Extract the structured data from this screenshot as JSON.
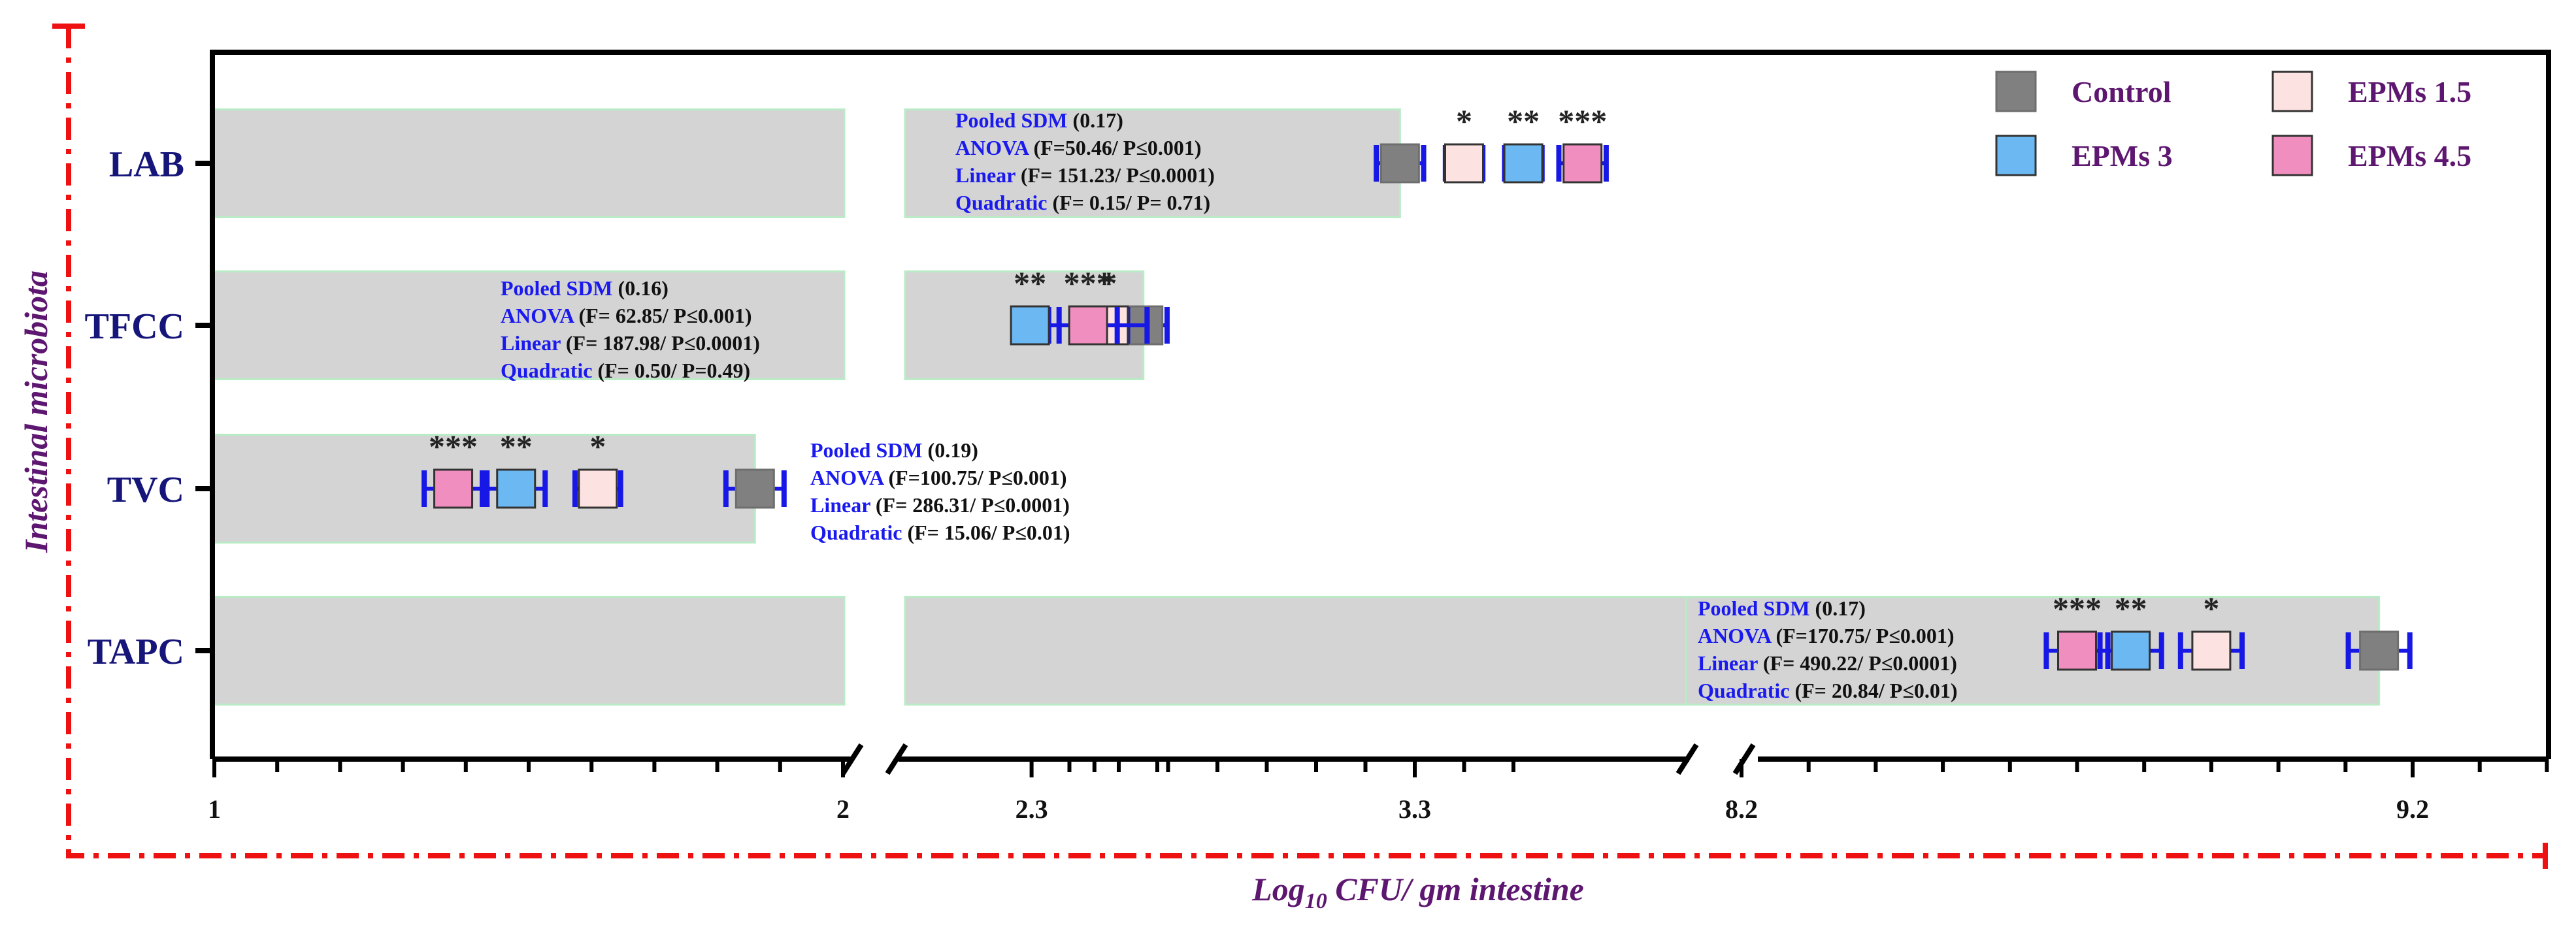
{
  "chart_data": {
    "type": "scatter",
    "orientation": "horizontal",
    "ylabel": "Intestinal microbiota",
    "xlabel_main": "Log",
    "xlabel_sub": "10",
    "xlabel_rest": " CFU/ gm intestine",
    "x_axis": {
      "broken": true,
      "segments": [
        [
          1,
          2
        ],
        [
          2.3,
          3.3,
          3.5
        ],
        [
          8.2,
          9.2,
          9.4
        ]
      ],
      "tick_labels": [
        "1",
        "2",
        "2.3",
        "3.3",
        "8.2",
        "9.2"
      ]
    },
    "categories": [
      "LAB",
      "TFCC",
      "TVC",
      "TAPC"
    ],
    "series": [
      {
        "name": "Control",
        "color": "#808080"
      },
      {
        "name": "EPMs 1.5",
        "color": "#fde2e2"
      },
      {
        "name": "EPMs 3",
        "color": "#6cb8f2"
      },
      {
        "name": "EPMs 4.5",
        "color": "#f08fbf"
      }
    ],
    "points": {
      "LAB": {
        "Control": 3.27,
        "EPMs 1.5": 3.4,
        "EPMs 3": 3.52,
        "EPMs 4.5": 3.64
      },
      "TFCC": {
        "Control": 2.75,
        "EPMs 1.5": 2.68,
        "EPMs 3": 2.52,
        "EPMs 4.5": 2.39
      },
      "TVC": {
        "Control": 1.86,
        "EPMs 1.5": 1.61,
        "EPMs 3": 1.48,
        "EPMs 4.5": 1.38
      },
      "TAPC": {
        "Control": 9.15,
        "EPMs 1.5": 8.9,
        "EPMs 3": 8.78,
        "EPMs 4.5": 8.7
      }
    },
    "error": {
      "LAB": {
        "Control": 0.04,
        "EPMs 1.5": 0.03,
        "EPMs 3": 0.03,
        "EPMs 4.5": 0.04
      },
      "TFCC": {
        "Control": 0.04,
        "EPMs 1.5": 0.03,
        "EPMs 3": 0.03,
        "EPMs 4.5": 0.04
      },
      "TVC": {
        "Control": 0.04,
        "EPMs 1.5": 0.03,
        "EPMs 3": 0.04,
        "EPMs 4.5": 0.04
      },
      "TAPC": {
        "Control": 0.04,
        "EPMs 1.5": 0.04,
        "EPMs 3": 0.04,
        "EPMs 4.5": 0.04
      }
    },
    "significance": {
      "LAB": {
        "EPMs 1.5": "*",
        "EPMs 3": "**",
        "EPMs 4.5": "***"
      },
      "TFCC": {
        "EPMs 1.5": "*",
        "EPMs 3": "**",
        "EPMs 4.5": "***"
      },
      "TVC": {
        "EPMs 1.5": "*",
        "EPMs 3": "**",
        "EPMs 4.5": "***"
      },
      "TAPC": {
        "EPMs 1.5": "*",
        "EPMs 3": "**",
        "EPMs 4.5": "***"
      }
    },
    "background_bar_ends": {
      "LAB": 3.27,
      "TFCC": 2.75,
      "TVC": 1.86,
      "TAPC": 9.15
    },
    "stats": {
      "LAB": [
        {
          "key": "Pooled SDM",
          "value": " (0.17)"
        },
        {
          "key": "ANOVA",
          "value": " (F=50.46/ P≤0.001)"
        },
        {
          "key": "Linear",
          "value": "  (F= 151.23/ P≤0.0001)"
        },
        {
          "key": "Quadratic",
          "value": " (F= 0.15/ P= 0.71)"
        }
      ],
      "TFCC": [
        {
          "key": "Pooled SDM",
          "value": " (0.16)"
        },
        {
          "key": "ANOVA",
          "value": " (F= 62.85/ P≤0.001)"
        },
        {
          "key": "Linear",
          "value": "  (F= 187.98/ P≤0.0001)"
        },
        {
          "key": "Quadratic",
          "value": " (F= 0.50/ P=0.49)"
        }
      ],
      "TVC": [
        {
          "key": "Pooled SDM",
          "value": " (0.19)"
        },
        {
          "key": "ANOVA",
          "value": " (F=100.75/ P≤0.001)"
        },
        {
          "key": "Linear",
          "value": "  (F= 286.31/ P≤0.0001)"
        },
        {
          "key": "Quadratic",
          "value": " (F= 15.06/ P≤0.01)"
        }
      ],
      "TAPC": [
        {
          "key": "Pooled SDM",
          "value": " (0.17)"
        },
        {
          "key": "ANOVA",
          "value": " (F=170.75/ P≤0.001)"
        },
        {
          "key": "Linear",
          "value": "  (F= 490.22/ P≤0.0001)"
        },
        {
          "key": "Quadratic",
          "value": " (F= 20.84/ P≤0.01)"
        }
      ]
    },
    "legend_placement": "top-right",
    "grid": false
  }
}
